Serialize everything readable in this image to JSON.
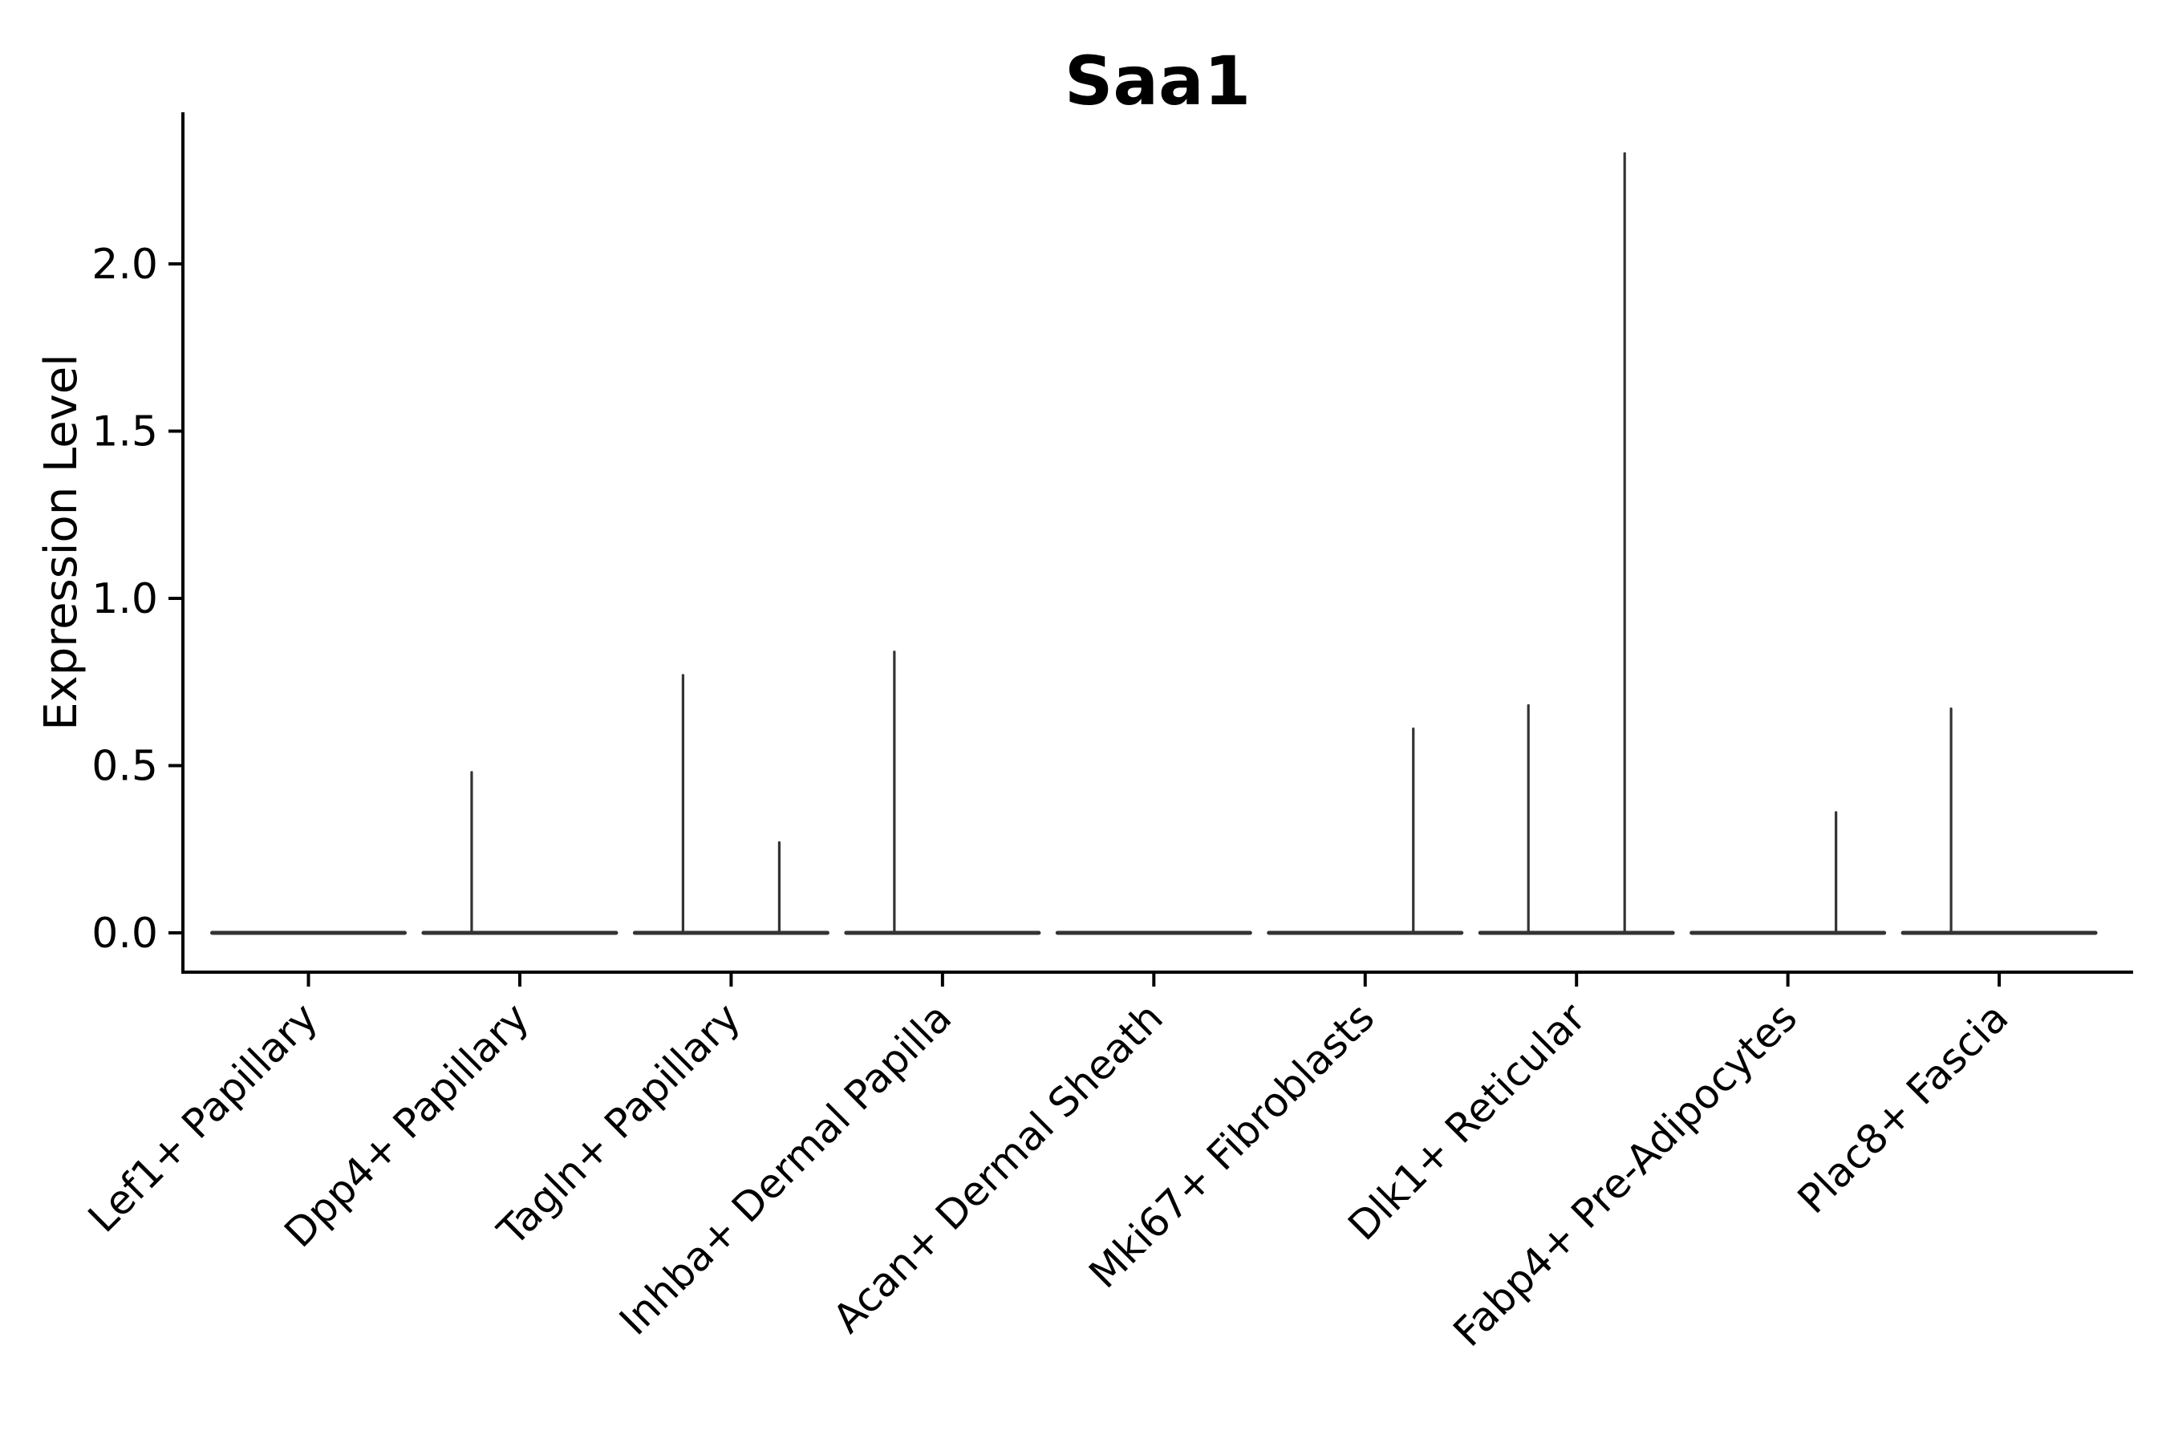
{
  "title": "Saa1",
  "axes": {
    "ylabel": "Expression Level",
    "ytick_labels": [
      "0.0",
      "0.5",
      "1.0",
      "1.5",
      "2.0"
    ]
  },
  "colors": {
    "spine": "#000000",
    "violin_stroke": "#333333",
    "text": "#000000",
    "background": "#ffffff"
  },
  "chart_data": {
    "type": "violin",
    "title": "Saa1",
    "xlabel": "",
    "ylabel": "Expression Level",
    "categories": [
      "Lef1+ Papillary",
      "Dpp4+ Papillary",
      "Tagln+ Papillary",
      "Inhba+ Dermal Papilla",
      "Acan+ Dermal Sheath",
      "Mki67+ Fibroblasts",
      "Dlk1+ Reticular",
      "Fabp4+ Pre-Adipocytes",
      "Plac8+ Fascia"
    ],
    "violins_per_category": 2,
    "series": [
      {
        "name": "left-violin",
        "max_values": [
          0,
          0.48,
          0.77,
          0.84,
          0,
          0,
          0.68,
          0,
          0.67
        ]
      },
      {
        "name": "right-violin",
        "max_values": [
          0,
          0,
          0.27,
          0,
          0,
          0.61,
          2.33,
          0.36,
          0
        ]
      }
    ],
    "description": "Each category holds two adjacent violins collapsed to a flat line at 0 expression with a thin density spike rising to the max expressed value; 0 means fully flat (no expressing cells).",
    "yticks": [
      0.0,
      0.5,
      1.0,
      1.5,
      2.0
    ],
    "ylim": [
      -0.12,
      2.45
    ],
    "grid": false,
    "legend": "none",
    "x_tick_rotation_deg": 45
  }
}
